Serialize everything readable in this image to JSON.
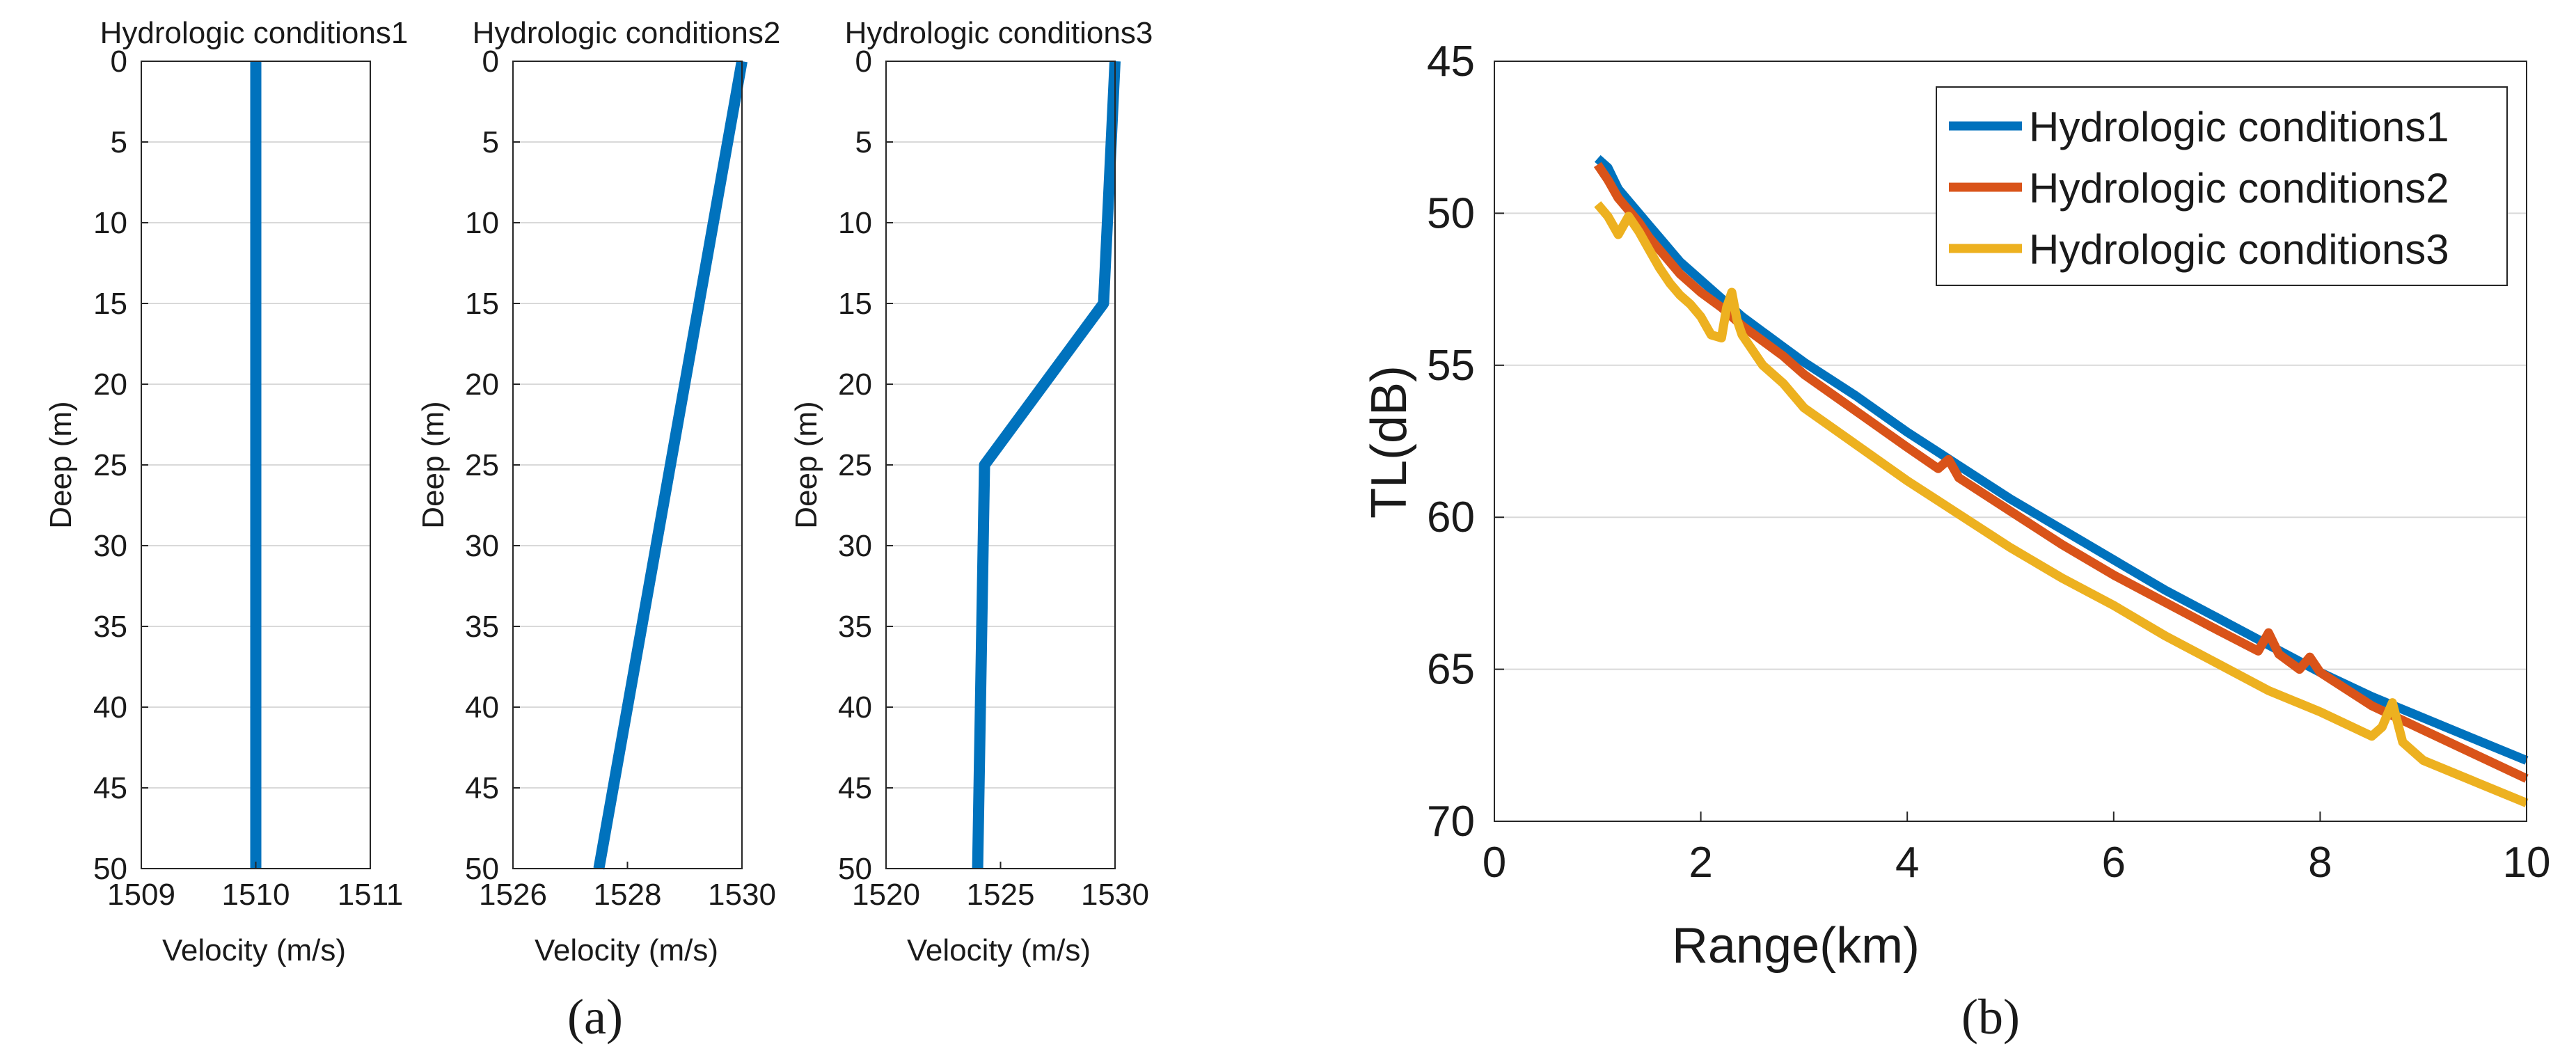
{
  "figure": {
    "caption_a": "(a)",
    "caption_b": "(b)"
  },
  "chart_data": [
    {
      "type": "line",
      "title": "Hydrologic conditions1",
      "xlabel": "Velocity  (m/s)",
      "ylabel": "Deep (m)",
      "xlim": [
        1509,
        1511
      ],
      "ylim": [
        0,
        50
      ],
      "y_reversed": true,
      "xticks": [
        "1509",
        "1510",
        "1511"
      ],
      "yticks": [
        "0",
        "5",
        "10",
        "15",
        "20",
        "25",
        "30",
        "35",
        "40",
        "45",
        "50"
      ],
      "series": [
        {
          "name": "Hydrologic conditions1",
          "color": "#0072BD",
          "x": [
            1510,
            1510
          ],
          "y": [
            0,
            50
          ]
        }
      ]
    },
    {
      "type": "line",
      "title": "Hydrologic conditions2",
      "xlabel": "Velocity  (m/s)",
      "ylabel": "Deep (m)",
      "xlim": [
        1526,
        1530
      ],
      "ylim": [
        0,
        50
      ],
      "y_reversed": true,
      "xticks": [
        "1526",
        "1528",
        "1530"
      ],
      "yticks": [
        "0",
        "5",
        "10",
        "15",
        "20",
        "25",
        "30",
        "35",
        "40",
        "45",
        "50"
      ],
      "series": [
        {
          "name": "Hydrologic conditions2",
          "color": "#0072BD",
          "x": [
            1530,
            1527.5
          ],
          "y": [
            0,
            50
          ]
        }
      ]
    },
    {
      "type": "line",
      "title": "Hydrologic conditions3",
      "xlabel": "Velocity  (m/s)",
      "ylabel": "Deep (m)",
      "xlim": [
        1520,
        1530
      ],
      "ylim": [
        0,
        50
      ],
      "y_reversed": true,
      "xticks": [
        "1520",
        "1525",
        "1530"
      ],
      "yticks": [
        "0",
        "5",
        "10",
        "15",
        "20",
        "25",
        "30",
        "35",
        "40",
        "45",
        "50"
      ],
      "series": [
        {
          "name": "Hydrologic conditions3",
          "color": "#0072BD",
          "x": [
            1530,
            1529.5,
            1524.3,
            1524
          ],
          "y": [
            0,
            15,
            25,
            50
          ]
        }
      ]
    },
    {
      "type": "line",
      "title": "",
      "xlabel": "Range(km)",
      "ylabel": "TL(dB)",
      "xlim": [
        0,
        10
      ],
      "ylim": [
        45,
        70
      ],
      "y_reversed": true,
      "xticks": [
        "0",
        "2",
        "4",
        "6",
        "8",
        "10"
      ],
      "yticks": [
        "45",
        "50",
        "55",
        "60",
        "65",
        "70"
      ],
      "legend_position": "top-right",
      "series": [
        {
          "name": "Hydrologic conditions1",
          "color": "#0072BD",
          "x": [
            1.0,
            1.1,
            1.2,
            1.3,
            1.4,
            1.5,
            1.6,
            1.7,
            1.8,
            1.9,
            2.0,
            2.2,
            2.4,
            2.6,
            2.8,
            3.0,
            3.5,
            4.0,
            4.5,
            5.0,
            5.5,
            6.0,
            6.5,
            7.0,
            7.5,
            8.0,
            8.5,
            9.0,
            9.5,
            10.0
          ],
          "y": [
            48.2,
            48.5,
            49.2,
            49.6,
            50.0,
            50.4,
            50.8,
            51.2,
            51.6,
            51.9,
            52.2,
            52.8,
            53.4,
            53.9,
            54.4,
            54.9,
            56.0,
            57.2,
            58.3,
            59.4,
            60.4,
            61.4,
            62.4,
            63.3,
            64.2,
            65.1,
            65.9,
            66.6,
            67.3,
            68.0
          ]
        },
        {
          "name": "Hydrologic conditions2",
          "color": "#D95319",
          "x": [
            1.0,
            1.1,
            1.2,
            1.3,
            1.4,
            1.5,
            1.6,
            1.7,
            1.8,
            1.9,
            2.0,
            2.2,
            2.4,
            2.6,
            2.8,
            3.0,
            3.5,
            4.0,
            4.3,
            4.4,
            4.5,
            5.0,
            5.5,
            6.0,
            6.5,
            7.0,
            7.4,
            7.5,
            7.6,
            7.8,
            7.9,
            8.0,
            8.5,
            9.0,
            9.5,
            10.0
          ],
          "y": [
            48.4,
            48.9,
            49.5,
            49.9,
            50.3,
            50.8,
            51.2,
            51.6,
            52.0,
            52.3,
            52.6,
            53.1,
            53.7,
            54.2,
            54.7,
            55.3,
            56.5,
            57.7,
            58.4,
            58.1,
            58.7,
            59.8,
            60.9,
            61.9,
            62.8,
            63.7,
            64.4,
            63.8,
            64.5,
            65.0,
            64.6,
            65.1,
            66.2,
            67.0,
            67.8,
            68.6
          ]
        },
        {
          "name": "Hydrologic conditions3",
          "color": "#EDB120",
          "x": [
            1.0,
            1.1,
            1.2,
            1.3,
            1.4,
            1.5,
            1.6,
            1.7,
            1.8,
            1.9,
            2.0,
            2.1,
            2.2,
            2.25,
            2.3,
            2.35,
            2.4,
            2.5,
            2.6,
            2.8,
            3.0,
            3.5,
            4.0,
            4.5,
            5.0,
            5.5,
            6.0,
            6.5,
            7.0,
            7.5,
            8.0,
            8.5,
            8.6,
            8.7,
            8.8,
            9.0,
            9.5,
            10.0
          ],
          "y": [
            49.7,
            50.1,
            50.7,
            50.1,
            50.6,
            51.2,
            51.8,
            52.3,
            52.7,
            53.0,
            53.4,
            54.0,
            54.1,
            53.1,
            52.6,
            53.5,
            54.0,
            54.5,
            55.0,
            55.6,
            56.4,
            57.6,
            58.8,
            59.9,
            61.0,
            62.0,
            62.9,
            63.9,
            64.8,
            65.7,
            66.4,
            67.2,
            66.9,
            66.1,
            67.4,
            68.0,
            68.7,
            69.4
          ]
        }
      ]
    }
  ]
}
